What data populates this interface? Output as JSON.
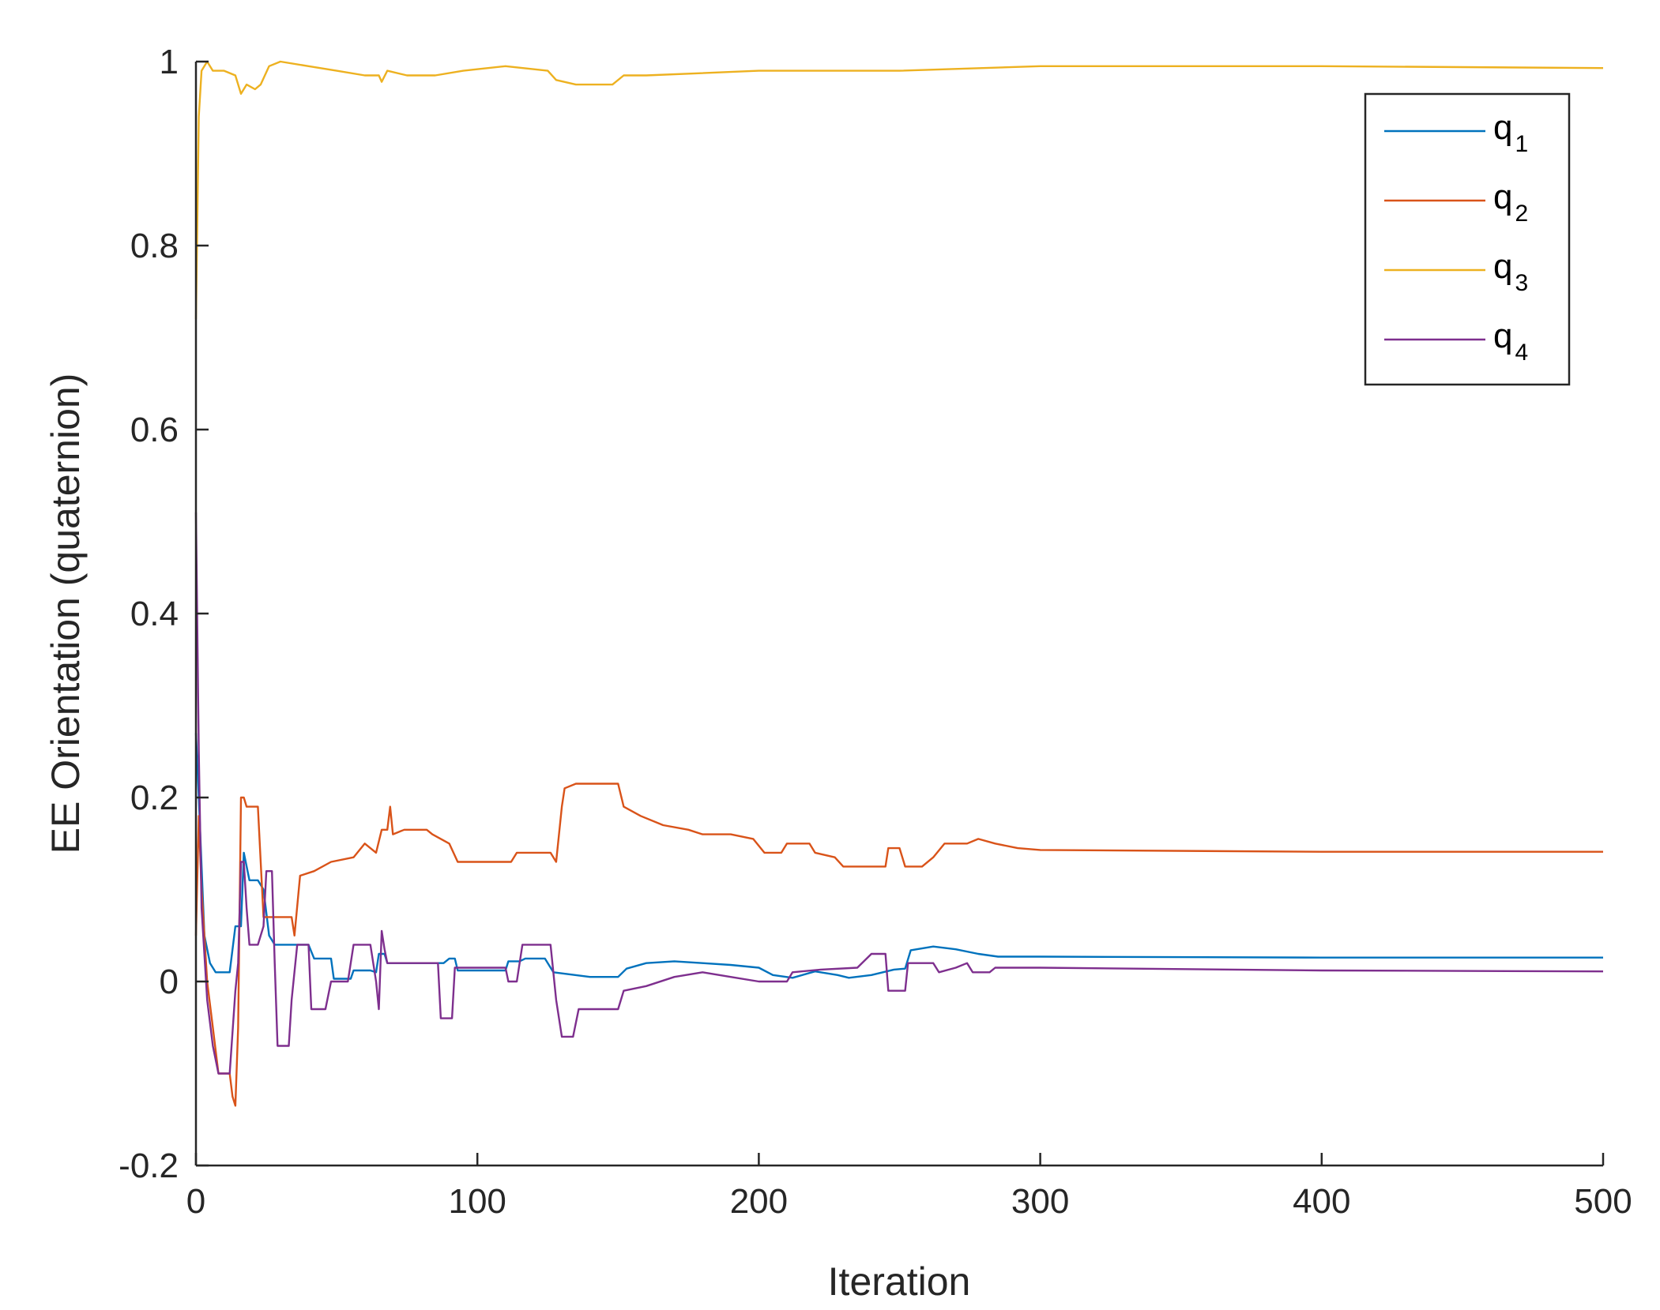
{
  "chart_data": {
    "type": "line",
    "xlabel": "Iteration",
    "ylabel": "EE Orientation (quaternion)",
    "xlim": [
      0,
      500
    ],
    "ylim": [
      -0.2,
      1
    ],
    "xticks": [
      0,
      100,
      200,
      300,
      400,
      500
    ],
    "xtick_labels": [
      "0",
      "100",
      "200",
      "300",
      "400",
      "500"
    ],
    "yticks": [
      -0.2,
      0,
      0.2,
      0.4,
      0.6,
      0.8,
      1
    ],
    "ytick_labels": [
      "-0.2",
      "0",
      "0.2",
      "0.4",
      "0.6",
      "0.8",
      "1"
    ],
    "grid": false,
    "legend_position": "top-right",
    "series": [
      {
        "name": "q1",
        "legend_base": "q",
        "legend_sub": "1",
        "color": "#0072BD",
        "points": [
          [
            0,
            0.27
          ],
          [
            1,
            0.2
          ],
          [
            3,
            0.05
          ],
          [
            5,
            0.02
          ],
          [
            7,
            0.01
          ],
          [
            10,
            0.01
          ],
          [
            12,
            0.01
          ],
          [
            14,
            0.06
          ],
          [
            16,
            0.06
          ],
          [
            17,
            0.14
          ],
          [
            19,
            0.11
          ],
          [
            22,
            0.11
          ],
          [
            24,
            0.1
          ],
          [
            26,
            0.05
          ],
          [
            28,
            0.04
          ],
          [
            40,
            0.04
          ],
          [
            42,
            0.025
          ],
          [
            48,
            0.025
          ],
          [
            49,
            0.003
          ],
          [
            55,
            0.003
          ],
          [
            56,
            0.012
          ],
          [
            62,
            0.012
          ],
          [
            64,
            0.01
          ],
          [
            65,
            0.03
          ],
          [
            67,
            0.03
          ],
          [
            68,
            0.02
          ],
          [
            88,
            0.02
          ],
          [
            90,
            0.025
          ],
          [
            92,
            0.025
          ],
          [
            93,
            0.012
          ],
          [
            110,
            0.012
          ],
          [
            111,
            0.022
          ],
          [
            115,
            0.022
          ],
          [
            117,
            0.025
          ],
          [
            124,
            0.025
          ],
          [
            127,
            0.01
          ],
          [
            140,
            0.005
          ],
          [
            150,
            0.005
          ],
          [
            153,
            0.014
          ],
          [
            160,
            0.02
          ],
          [
            170,
            0.022
          ],
          [
            180,
            0.02
          ],
          [
            190,
            0.018
          ],
          [
            200,
            0.015
          ],
          [
            205,
            0.007
          ],
          [
            212,
            0.004
          ],
          [
            220,
            0.011
          ],
          [
            228,
            0.007
          ],
          [
            232,
            0.004
          ],
          [
            240,
            0.007
          ],
          [
            248,
            0.013
          ],
          [
            252,
            0.014
          ],
          [
            254,
            0.034
          ],
          [
            262,
            0.038
          ],
          [
            270,
            0.035
          ],
          [
            278,
            0.03
          ],
          [
            285,
            0.027
          ],
          [
            300,
            0.027
          ],
          [
            400,
            0.026
          ],
          [
            500,
            0.026
          ]
        ]
      },
      {
        "name": "q2",
        "legend_base": "q",
        "legend_sub": "2",
        "color": "#D95319",
        "points": [
          [
            0,
            0.05
          ],
          [
            1,
            0.18
          ],
          [
            2,
            0.1
          ],
          [
            4,
            0.0
          ],
          [
            6,
            -0.05
          ],
          [
            8,
            -0.1
          ],
          [
            12,
            -0.1
          ],
          [
            13,
            -0.125
          ],
          [
            14,
            -0.135
          ],
          [
            15,
            -0.05
          ],
          [
            16,
            0.2
          ],
          [
            17,
            0.2
          ],
          [
            18,
            0.19
          ],
          [
            22,
            0.19
          ],
          [
            24,
            0.07
          ],
          [
            34,
            0.07
          ],
          [
            35,
            0.05
          ],
          [
            37,
            0.115
          ],
          [
            42,
            0.12
          ],
          [
            48,
            0.13
          ],
          [
            56,
            0.135
          ],
          [
            60,
            0.15
          ],
          [
            64,
            0.14
          ],
          [
            66,
            0.165
          ],
          [
            68,
            0.165
          ],
          [
            69,
            0.19
          ],
          [
            70,
            0.16
          ],
          [
            74,
            0.165
          ],
          [
            82,
            0.165
          ],
          [
            84,
            0.16
          ],
          [
            90,
            0.15
          ],
          [
            93,
            0.13
          ],
          [
            112,
            0.13
          ],
          [
            114,
            0.14
          ],
          [
            126,
            0.14
          ],
          [
            128,
            0.13
          ],
          [
            130,
            0.19
          ],
          [
            131,
            0.21
          ],
          [
            135,
            0.215
          ],
          [
            150,
            0.215
          ],
          [
            152,
            0.19
          ],
          [
            158,
            0.18
          ],
          [
            166,
            0.17
          ],
          [
            175,
            0.165
          ],
          [
            180,
            0.16
          ],
          [
            190,
            0.16
          ],
          [
            198,
            0.155
          ],
          [
            202,
            0.14
          ],
          [
            208,
            0.14
          ],
          [
            210,
            0.15
          ],
          [
            218,
            0.15
          ],
          [
            220,
            0.14
          ],
          [
            227,
            0.135
          ],
          [
            230,
            0.125
          ],
          [
            238,
            0.125
          ],
          [
            245,
            0.125
          ],
          [
            246,
            0.145
          ],
          [
            250,
            0.145
          ],
          [
            252,
            0.125
          ],
          [
            258,
            0.125
          ],
          [
            262,
            0.135
          ],
          [
            266,
            0.15
          ],
          [
            274,
            0.15
          ],
          [
            278,
            0.155
          ],
          [
            284,
            0.15
          ],
          [
            292,
            0.145
          ],
          [
            300,
            0.143
          ],
          [
            400,
            0.141
          ],
          [
            500,
            0.141
          ]
        ]
      },
      {
        "name": "q3",
        "legend_base": "q",
        "legend_sub": "3",
        "color": "#EDB120",
        "points": [
          [
            0,
            0.72
          ],
          [
            1,
            0.94
          ],
          [
            2,
            0.99
          ],
          [
            4,
            1.0
          ],
          [
            6,
            0.99
          ],
          [
            10,
            0.99
          ],
          [
            14,
            0.985
          ],
          [
            16,
            0.965
          ],
          [
            18,
            0.975
          ],
          [
            21,
            0.97
          ],
          [
            23,
            0.975
          ],
          [
            26,
            0.995
          ],
          [
            30,
            1.0
          ],
          [
            40,
            0.995
          ],
          [
            50,
            0.99
          ],
          [
            60,
            0.985
          ],
          [
            65,
            0.985
          ],
          [
            66,
            0.978
          ],
          [
            68,
            0.99
          ],
          [
            75,
            0.985
          ],
          [
            85,
            0.985
          ],
          [
            95,
            0.99
          ],
          [
            110,
            0.995
          ],
          [
            125,
            0.99
          ],
          [
            128,
            0.98
          ],
          [
            135,
            0.975
          ],
          [
            148,
            0.975
          ],
          [
            152,
            0.985
          ],
          [
            160,
            0.985
          ],
          [
            200,
            0.99
          ],
          [
            250,
            0.99
          ],
          [
            300,
            0.995
          ],
          [
            400,
            0.995
          ],
          [
            500,
            0.993
          ]
        ]
      },
      {
        "name": "q4",
        "legend_base": "q",
        "legend_sub": "4",
        "color": "#7E2F8E",
        "points": [
          [
            0,
            0.51
          ],
          [
            1,
            0.25
          ],
          [
            2,
            0.08
          ],
          [
            4,
            -0.02
          ],
          [
            6,
            -0.07
          ],
          [
            8,
            -0.1
          ],
          [
            12,
            -0.1
          ],
          [
            14,
            -0.01
          ],
          [
            15,
            0.02
          ],
          [
            16,
            0.13
          ],
          [
            17,
            0.13
          ],
          [
            18,
            0.08
          ],
          [
            19,
            0.04
          ],
          [
            22,
            0.04
          ],
          [
            24,
            0.06
          ],
          [
            25,
            0.12
          ],
          [
            27,
            0.12
          ],
          [
            28,
            0.02
          ],
          [
            29,
            -0.07
          ],
          [
            33,
            -0.07
          ],
          [
            34,
            -0.02
          ],
          [
            36,
            0.04
          ],
          [
            40,
            0.04
          ],
          [
            41,
            -0.03
          ],
          [
            46,
            -0.03
          ],
          [
            48,
            0.0
          ],
          [
            54,
            0.0
          ],
          [
            56,
            0.04
          ],
          [
            62,
            0.04
          ],
          [
            64,
            0.0
          ],
          [
            65,
            -0.03
          ],
          [
            66,
            0.055
          ],
          [
            67,
            0.035
          ],
          [
            68,
            0.02
          ],
          [
            86,
            0.02
          ],
          [
            87,
            -0.04
          ],
          [
            91,
            -0.04
          ],
          [
            92,
            0.015
          ],
          [
            102,
            0.015
          ],
          [
            110,
            0.015
          ],
          [
            111,
            0.0
          ],
          [
            114,
            0.0
          ],
          [
            116,
            0.04
          ],
          [
            125,
            0.04
          ],
          [
            126,
            0.04
          ],
          [
            128,
            -0.02
          ],
          [
            130,
            -0.06
          ],
          [
            134,
            -0.06
          ],
          [
            136,
            -0.03
          ],
          [
            150,
            -0.03
          ],
          [
            152,
            -0.01
          ],
          [
            160,
            -0.005
          ],
          [
            170,
            0.005
          ],
          [
            180,
            0.01
          ],
          [
            190,
            0.005
          ],
          [
            200,
            0.0
          ],
          [
            210,
            0.0
          ],
          [
            212,
            0.01
          ],
          [
            222,
            0.013
          ],
          [
            235,
            0.015
          ],
          [
            240,
            0.03
          ],
          [
            245,
            0.03
          ],
          [
            246,
            -0.01
          ],
          [
            252,
            -0.01
          ],
          [
            253,
            0.02
          ],
          [
            262,
            0.02
          ],
          [
            264,
            0.01
          ],
          [
            270,
            0.015
          ],
          [
            274,
            0.02
          ],
          [
            276,
            0.01
          ],
          [
            282,
            0.01
          ],
          [
            284,
            0.015
          ],
          [
            300,
            0.015
          ],
          [
            400,
            0.012
          ],
          [
            500,
            0.011
          ]
        ]
      }
    ]
  }
}
